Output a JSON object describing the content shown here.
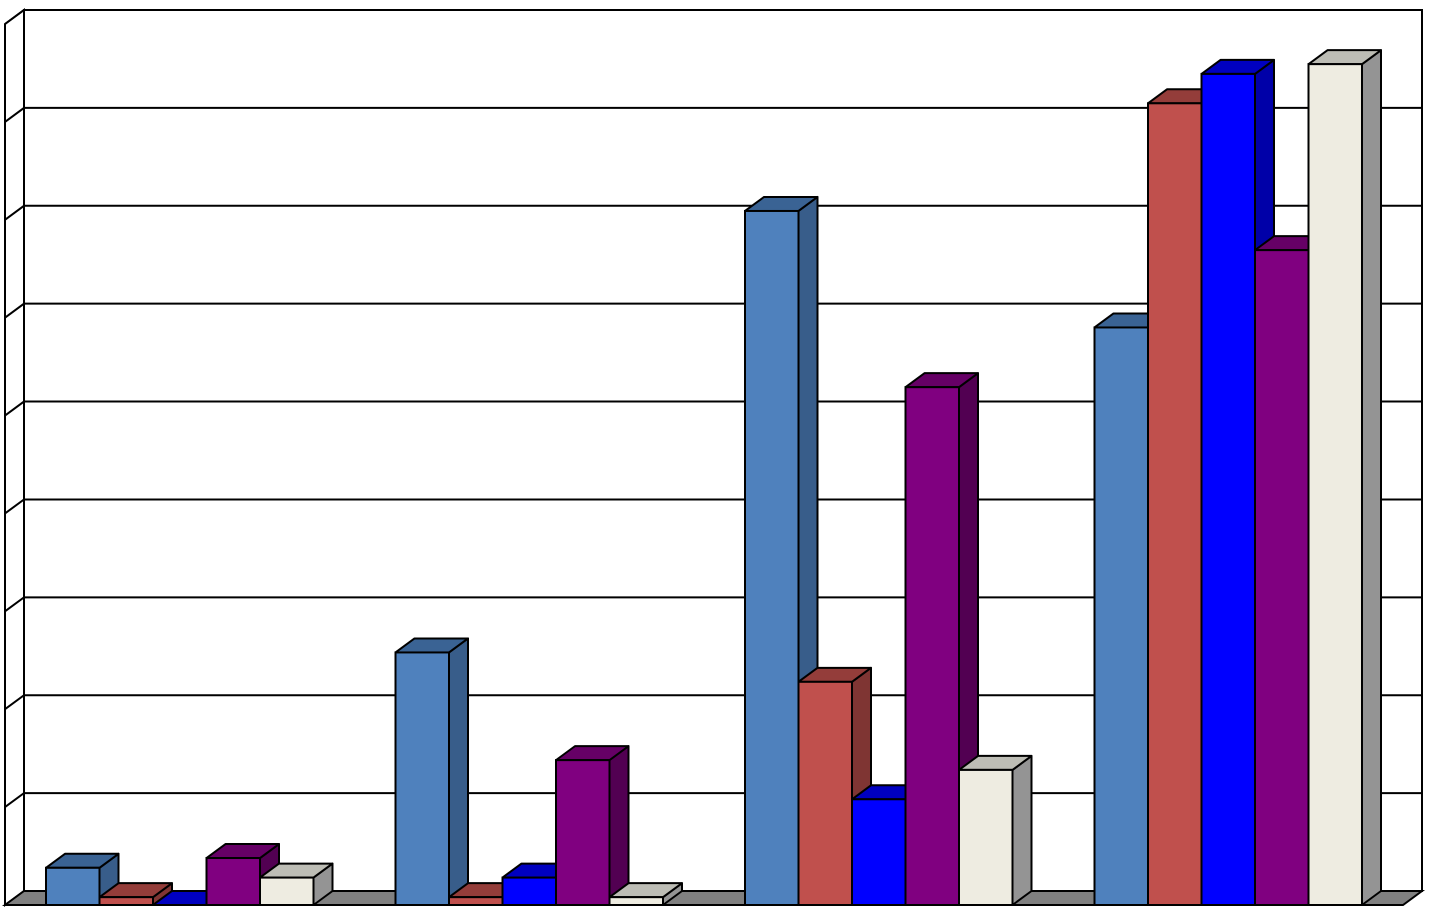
{
  "chart_data": {
    "type": "bar",
    "style": "3d-clustered-column",
    "categories": [
      "",
      "",
      "",
      ""
    ],
    "ylim": [
      0,
      9
    ],
    "grid": true,
    "legend": "none",
    "series": [
      {
        "color": "#4F81BD",
        "side": "#385D8A",
        "top": "#3A6394",
        "values": [
          0.38,
          2.58,
          7.09,
          5.9
        ]
      },
      {
        "color": "#C0504D",
        "side": "#7F3533",
        "top": "#943D3A",
        "values": [
          0.08,
          0.08,
          2.28,
          8.19
        ]
      },
      {
        "color": "#0000FF",
        "side": "#0000A8",
        "top": "#0000C0",
        "values": [
          0.0,
          0.28,
          1.08,
          8.49
        ]
      },
      {
        "color": "#800080",
        "side": "#520052",
        "top": "#660066",
        "values": [
          0.48,
          1.48,
          5.29,
          6.69
        ]
      },
      {
        "color": "#EEECE1",
        "side": "#949494",
        "top": "#BDBDB5",
        "values": [
          0.28,
          0.08,
          1.38,
          8.59
        ]
      }
    ]
  }
}
